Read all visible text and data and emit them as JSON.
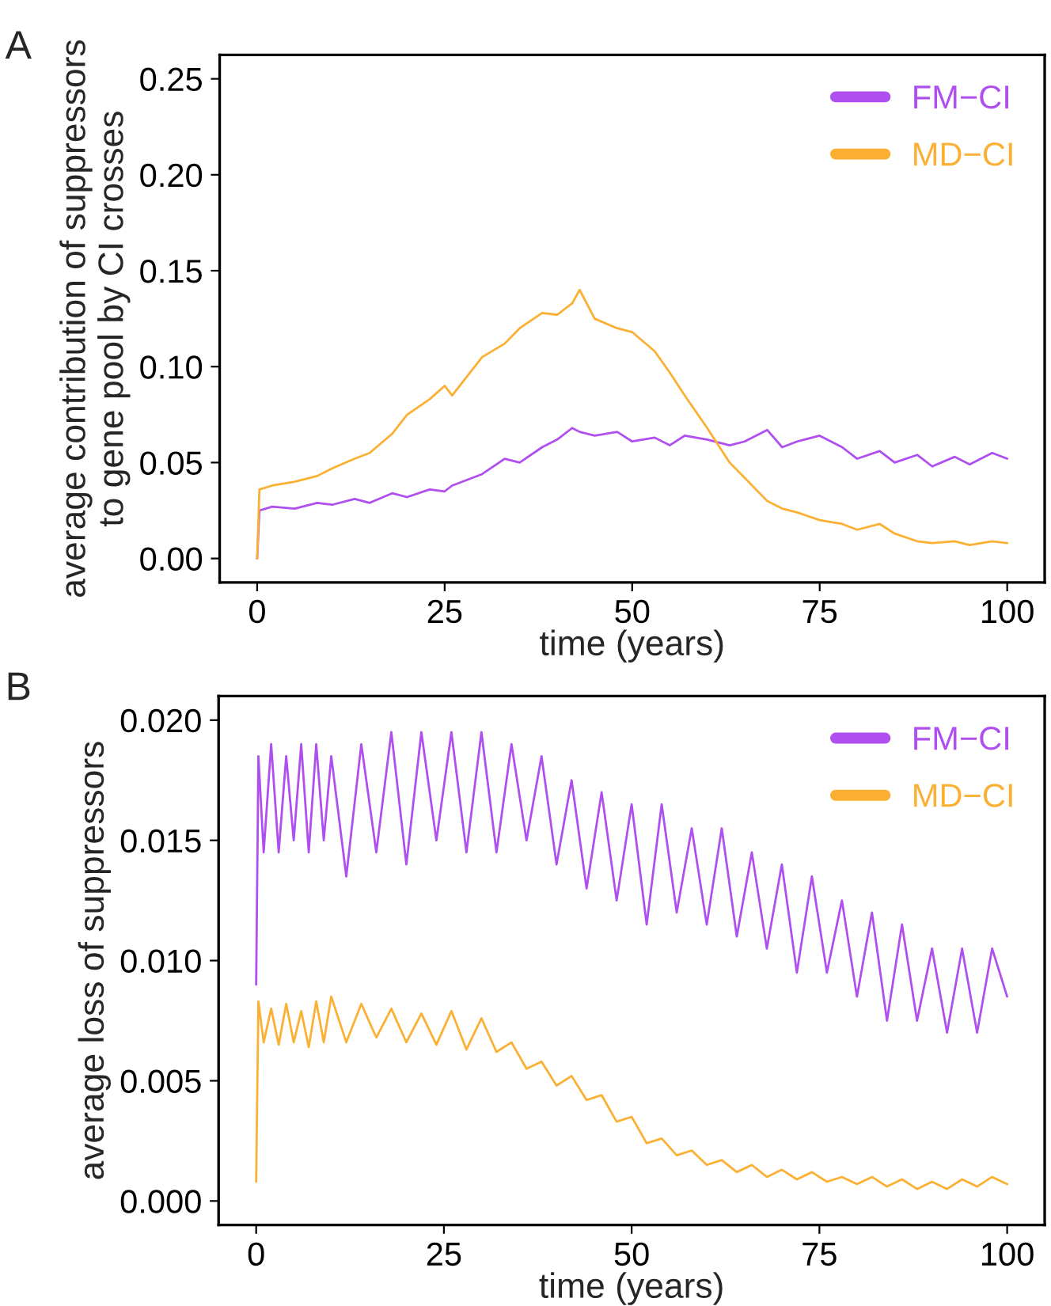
{
  "chart_data": [
    {
      "type": "line",
      "xlabel": "time (years)",
      "ylabel": "average contribution of suppressors\nto gene pool by CI crosses",
      "annotations": [
        "A"
      ],
      "x": [
        0,
        0.3,
        2,
        5,
        8,
        10,
        13,
        15,
        18,
        20,
        23,
        25,
        26,
        28,
        30,
        33,
        35,
        38,
        40,
        42,
        43,
        45,
        48,
        50,
        53,
        55,
        57,
        60,
        63,
        65,
        68,
        70,
        72,
        75,
        78,
        80,
        83,
        85,
        88,
        90,
        93,
        95,
        98,
        100
      ],
      "series": [
        {
          "name": "FM−CI",
          "color": "#b04ff0",
          "values": [
            0,
            0.025,
            0.027,
            0.026,
            0.029,
            0.028,
            0.031,
            0.029,
            0.034,
            0.032,
            0.036,
            0.035,
            0.038,
            0.041,
            0.044,
            0.052,
            0.05,
            0.058,
            0.062,
            0.068,
            0.066,
            0.064,
            0.066,
            0.061,
            0.063,
            0.059,
            0.064,
            0.062,
            0.059,
            0.061,
            0.067,
            0.058,
            0.061,
            0.064,
            0.058,
            0.052,
            0.056,
            0.05,
            0.054,
            0.048,
            0.053,
            0.049,
            0.055,
            0.052
          ]
        },
        {
          "name": "MD−CI",
          "color": "#fbb033",
          "values": [
            0,
            0.036,
            0.038,
            0.04,
            0.043,
            0.047,
            0.052,
            0.055,
            0.065,
            0.075,
            0.083,
            0.09,
            0.085,
            0.095,
            0.105,
            0.112,
            0.12,
            0.128,
            0.127,
            0.133,
            0.14,
            0.125,
            0.12,
            0.118,
            0.108,
            0.097,
            0.085,
            0.068,
            0.05,
            0.042,
            0.03,
            0.026,
            0.024,
            0.02,
            0.018,
            0.015,
            0.018,
            0.013,
            0.009,
            0.008,
            0.009,
            0.007,
            0.009,
            0.008
          ]
        }
      ],
      "xlim": [
        -5,
        105
      ],
      "xticks": [
        0,
        25,
        50,
        75,
        100
      ],
      "ylim": [
        -0.0125,
        0.2625
      ],
      "yticks": [
        {
          "value": 0,
          "label": "0.00"
        },
        0.05,
        {
          "value": 0.1,
          "label": "0.10"
        },
        0.15,
        {
          "value": 0.2,
          "label": "0.20"
        },
        0.25
      ],
      "grid": false,
      "legend": "top right"
    },
    {
      "type": "line",
      "xlabel": "time (years)",
      "ylabel": "average loss of suppressors",
      "annotations": [
        "B"
      ],
      "x": [
        0,
        0.3,
        1,
        2,
        3,
        4,
        5,
        6,
        7,
        8,
        9,
        10,
        12,
        14,
        16,
        18,
        20,
        22,
        24,
        26,
        28,
        30,
        32,
        34,
        36,
        38,
        40,
        42,
        44,
        46,
        48,
        50,
        52,
        54,
        56,
        58,
        60,
        62,
        64,
        66,
        68,
        70,
        72,
        74,
        76,
        78,
        80,
        82,
        84,
        86,
        88,
        90,
        92,
        94,
        96,
        98,
        100
      ],
      "series": [
        {
          "name": "FM−CI",
          "color": "#b04ff0",
          "values": [
            0.009,
            0.0185,
            0.0145,
            0.019,
            0.0145,
            0.0185,
            0.015,
            0.019,
            0.0145,
            0.019,
            0.015,
            0.0185,
            0.0135,
            0.019,
            0.0145,
            0.0195,
            0.014,
            0.0195,
            0.015,
            0.0195,
            0.0145,
            0.0195,
            0.0145,
            0.019,
            0.015,
            0.0185,
            0.014,
            0.0175,
            0.013,
            0.017,
            0.0125,
            0.0165,
            0.0115,
            0.0165,
            0.012,
            0.0155,
            0.0115,
            0.0155,
            0.011,
            0.0145,
            0.0105,
            0.014,
            0.0095,
            0.0135,
            0.0095,
            0.0125,
            0.0085,
            0.012,
            0.0075,
            0.0115,
            0.0075,
            0.0105,
            0.007,
            0.0105,
            0.007,
            0.0105,
            0.0085
          ]
        },
        {
          "name": "MD−CI",
          "color": "#fbb033",
          "values": [
            0.0008,
            0.0083,
            0.0066,
            0.008,
            0.0065,
            0.0082,
            0.0066,
            0.0079,
            0.0064,
            0.0083,
            0.0066,
            0.0085,
            0.0066,
            0.0082,
            0.0068,
            0.008,
            0.0066,
            0.0078,
            0.0065,
            0.0079,
            0.0063,
            0.0076,
            0.0062,
            0.0066,
            0.0055,
            0.0058,
            0.0048,
            0.0052,
            0.0042,
            0.0044,
            0.0033,
            0.0035,
            0.0024,
            0.0026,
            0.0019,
            0.0021,
            0.0015,
            0.0017,
            0.0012,
            0.0015,
            0.001,
            0.0013,
            0.0009,
            0.0012,
            0.0008,
            0.001,
            0.0007,
            0.001,
            0.0006,
            0.0009,
            0.0005,
            0.0008,
            0.0005,
            0.0009,
            0.0006,
            0.001,
            0.0007
          ]
        }
      ],
      "xlim": [
        -5,
        105
      ],
      "xticks": [
        0,
        25,
        50,
        75,
        100
      ],
      "ylim": [
        -0.001,
        0.021
      ],
      "yticks": [
        {
          "value": 0,
          "label": "0.000"
        },
        {
          "value": 0.005,
          "label": "0.005"
        },
        {
          "value": 0.01,
          "label": "0.010"
        },
        {
          "value": 0.015,
          "label": "0.015"
        },
        {
          "value": 0.02,
          "label": "0.020"
        }
      ],
      "grid": false,
      "legend": "top right"
    }
  ]
}
